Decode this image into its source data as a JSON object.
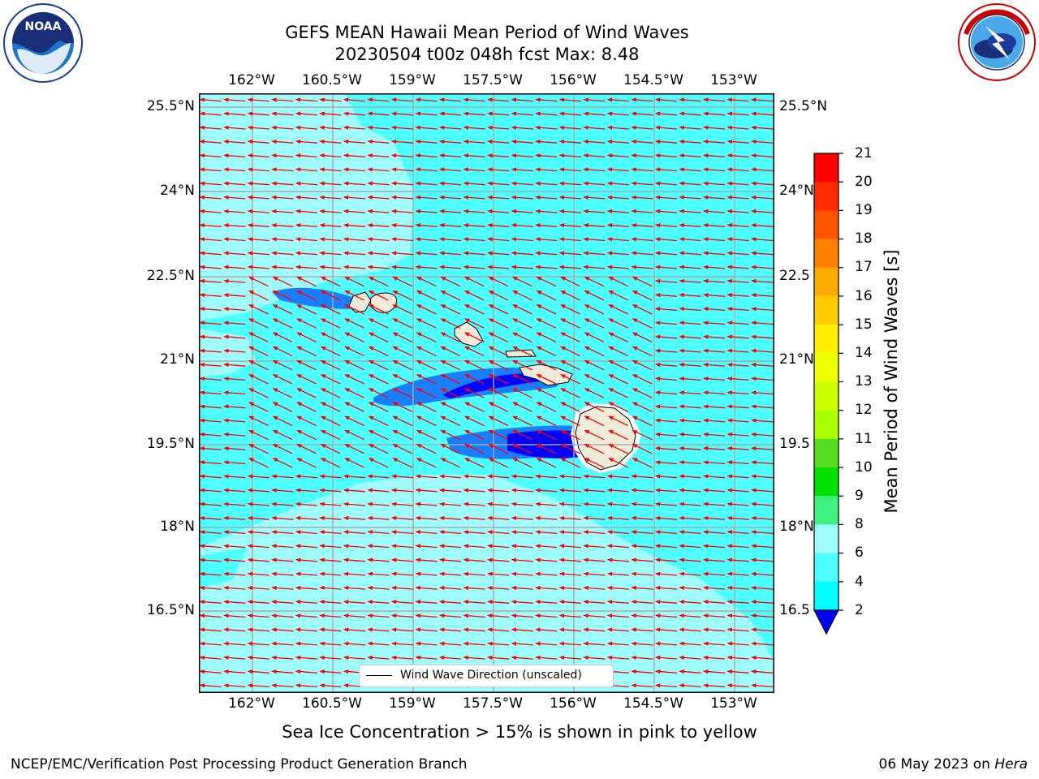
{
  "title": {
    "line1": "GEFS MEAN Hawaii Mean Period of Wind Waves",
    "line2": "20230504 t00z 048h fcst   Max: 8.48"
  },
  "logos": {
    "noaa": {
      "text": "NOAA",
      "ring_text": "NATIONAL OCEANIC AND ATMOSPHERIC ADMINISTRATION · U.S. DEPARTMENT OF COMMERCE",
      "icon": "noaa-logo"
    },
    "nws": {
      "ring_text": "NATIONAL WEATHER SERVICE",
      "icon": "nws-logo"
    }
  },
  "map": {
    "lon_labels": [
      "162°W",
      "160.5°W",
      "159°W",
      "157.5°W",
      "156°W",
      "154.5°W",
      "153°W"
    ],
    "lat_labels": [
      "25.5°N",
      "24°N",
      "22.5°N",
      "21°N",
      "19.5°N",
      "18°N",
      "16.5°N"
    ],
    "lat_labels_right": [
      "25.5°N",
      "24°N",
      "22.5",
      "21°N",
      "19.5",
      "18°N",
      "16.5"
    ],
    "ocean_color": "#4dffff",
    "light_color": "#9ffcfc",
    "mid_blue": "#1a7fff",
    "deep_blue": "#0000ff",
    "land_color": "#efebdb",
    "arrow_color": "#ff0000"
  },
  "legend": {
    "label": "Wind Wave Direction (unscaled)"
  },
  "colorbar": {
    "label": "Mean Period of Wind Waves [s]",
    "ticks": [
      "21",
      "20",
      "19",
      "18",
      "17",
      "16",
      "15",
      "14",
      "13",
      "12",
      "11",
      "10",
      "9",
      "8",
      "6",
      "4",
      "2"
    ],
    "colors": [
      "#ff0000",
      "#ff2a00",
      "#ff5500",
      "#ff7f00",
      "#ffaa00",
      "#ffcc00",
      "#ffee00",
      "#eeff00",
      "#ccff00",
      "#aaff00",
      "#55dd22",
      "#00e000",
      "#40f080",
      "#9ffcfc",
      "#4dffff",
      "#00ffff",
      "#1a7fff"
    ],
    "extend_color": "#0000ff"
  },
  "subnote": "Sea Ice Concentration > 15% is shown in pink to yellow",
  "footer": {
    "left": "NCEP/EMC/Verification Post Processing Product Generation Branch",
    "date": "06 May 2023 on",
    "machine": "Hera"
  }
}
